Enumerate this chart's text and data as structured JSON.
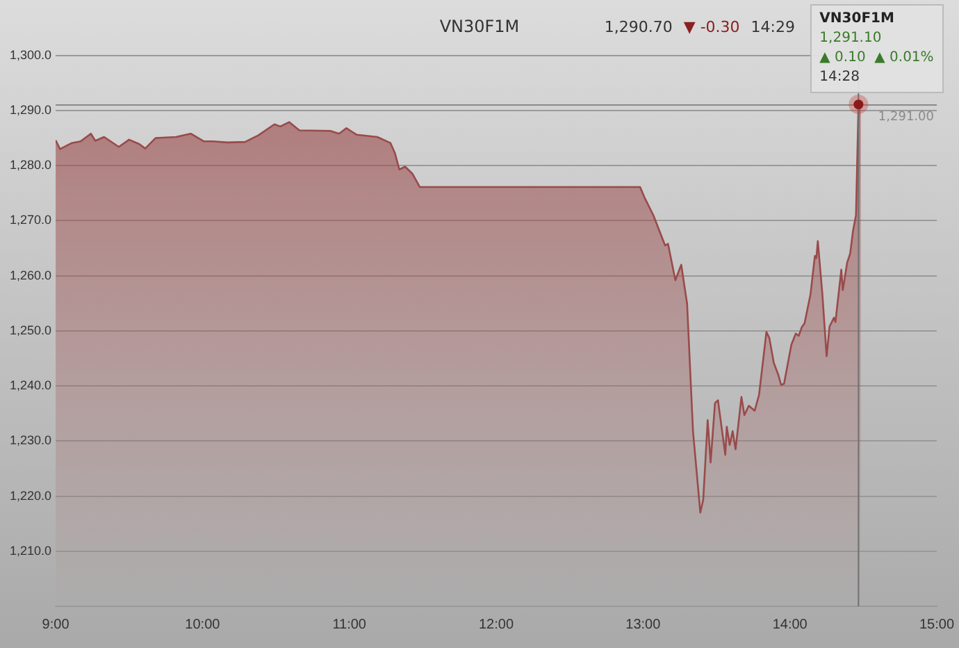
{
  "chart_data": {
    "type": "area",
    "title": "VN30F1M",
    "x": [
      9.0,
      9.03,
      9.11,
      9.17,
      9.24,
      9.27,
      9.33,
      9.43,
      9.5,
      9.57,
      9.61,
      9.68,
      9.82,
      9.92,
      10.01,
      10.07,
      10.17,
      10.29,
      10.38,
      10.49,
      10.53,
      10.59,
      10.66,
      10.87,
      10.93,
      10.98,
      11.05,
      11.19,
      11.28,
      11.31,
      11.34,
      11.38,
      11.43,
      11.48,
      12.98,
      13.01,
      13.07,
      13.15,
      13.17,
      13.22,
      13.26,
      13.3,
      13.34,
      13.39,
      13.41,
      13.44,
      13.46,
      13.49,
      13.51,
      13.56,
      13.57,
      13.59,
      13.61,
      13.63,
      13.67,
      13.69,
      13.72,
      13.76,
      13.79,
      13.84,
      13.86,
      13.89,
      13.92,
      13.94,
      13.96,
      14.01,
      14.04,
      14.06,
      14.08,
      14.1,
      14.14,
      14.17,
      14.18,
      14.19,
      14.22,
      14.25,
      14.27,
      14.3,
      14.31,
      14.35,
      14.36,
      14.39,
      14.41,
      14.43,
      14.45,
      14.467,
      14.483
    ],
    "series": [
      {
        "color": "#9a4a4a",
        "values": [
          1284.6,
          1283.0,
          1284.1,
          1284.4,
          1285.8,
          1284.5,
          1285.2,
          1283.4,
          1284.7,
          1283.9,
          1283.1,
          1285.0,
          1285.2,
          1285.8,
          1284.4,
          1284.4,
          1284.2,
          1284.3,
          1285.5,
          1287.5,
          1287.1,
          1287.9,
          1286.4,
          1286.3,
          1285.8,
          1286.8,
          1285.6,
          1285.2,
          1284.1,
          1282.3,
          1279.3,
          1279.8,
          1278.5,
          1276.1,
          1276.1,
          1274.2,
          1271.0,
          1265.5,
          1265.8,
          1259.2,
          1262.0,
          1254.9,
          1231.8,
          1217.0,
          1219.4,
          1233.8,
          1226.1,
          1236.9,
          1237.4,
          1227.5,
          1232.6,
          1229.3,
          1231.8,
          1228.5,
          1238.0,
          1234.7,
          1236.4,
          1235.5,
          1238.4,
          1249.8,
          1248.7,
          1244.2,
          1242.1,
          1240.2,
          1240.4,
          1247.5,
          1249.5,
          1249.1,
          1250.6,
          1251.4,
          1256.6,
          1263.6,
          1263.2,
          1266.3,
          1257.0,
          1245.4,
          1250.8,
          1252.4,
          1251.6,
          1261.1,
          1257.4,
          1262.4,
          1264.0,
          1268.2,
          1271.0,
          1291.1,
          1290.7
        ]
      }
    ],
    "xlim": [
      9,
      15
    ],
    "xticks": [
      {
        "value": 9,
        "label": "9:00"
      },
      {
        "value": 10,
        "label": "10:00"
      },
      {
        "value": 11,
        "label": "11:00"
      },
      {
        "value": 12,
        "label": "12:00"
      },
      {
        "value": 13,
        "label": "13:00"
      },
      {
        "value": 14,
        "label": "14:00"
      },
      {
        "value": 15,
        "label": "15:00"
      }
    ],
    "ylim": [
      1200,
      1304
    ],
    "yticks": [
      {
        "value": 1210,
        "label": "1,210.0"
      },
      {
        "value": 1220,
        "label": "1,220.0"
      },
      {
        "value": 1230,
        "label": "1,230.0"
      },
      {
        "value": 1240,
        "label": "1,240.0"
      },
      {
        "value": 1250,
        "label": "1,250.0"
      },
      {
        "value": 1260,
        "label": "1,260.0"
      },
      {
        "value": 1270,
        "label": "1,270.0"
      },
      {
        "value": 1280,
        "label": "1,280.0"
      },
      {
        "value": 1290,
        "label": "1,290.0"
      },
      {
        "value": 1300,
        "label": "1,300.0"
      }
    ],
    "ref_lines": [
      {
        "axis": "y",
        "value": 1291.0,
        "label": "1,291.00",
        "color": "#8a8a8a"
      },
      {
        "axis": "x",
        "value": 14.467,
        "color": "#707070"
      }
    ],
    "annotations": [
      "1,290.70",
      "▼ -0.30",
      "14:29",
      {
        "text": "VN30F1M\n1,291.10\n▲ 0.10  ▲ 0.01%\n14:28",
        "x": 14.467,
        "y": 1291.1
      }
    ],
    "grid": "y",
    "legend": false,
    "marker": "none",
    "line_style": "solid"
  }
}
